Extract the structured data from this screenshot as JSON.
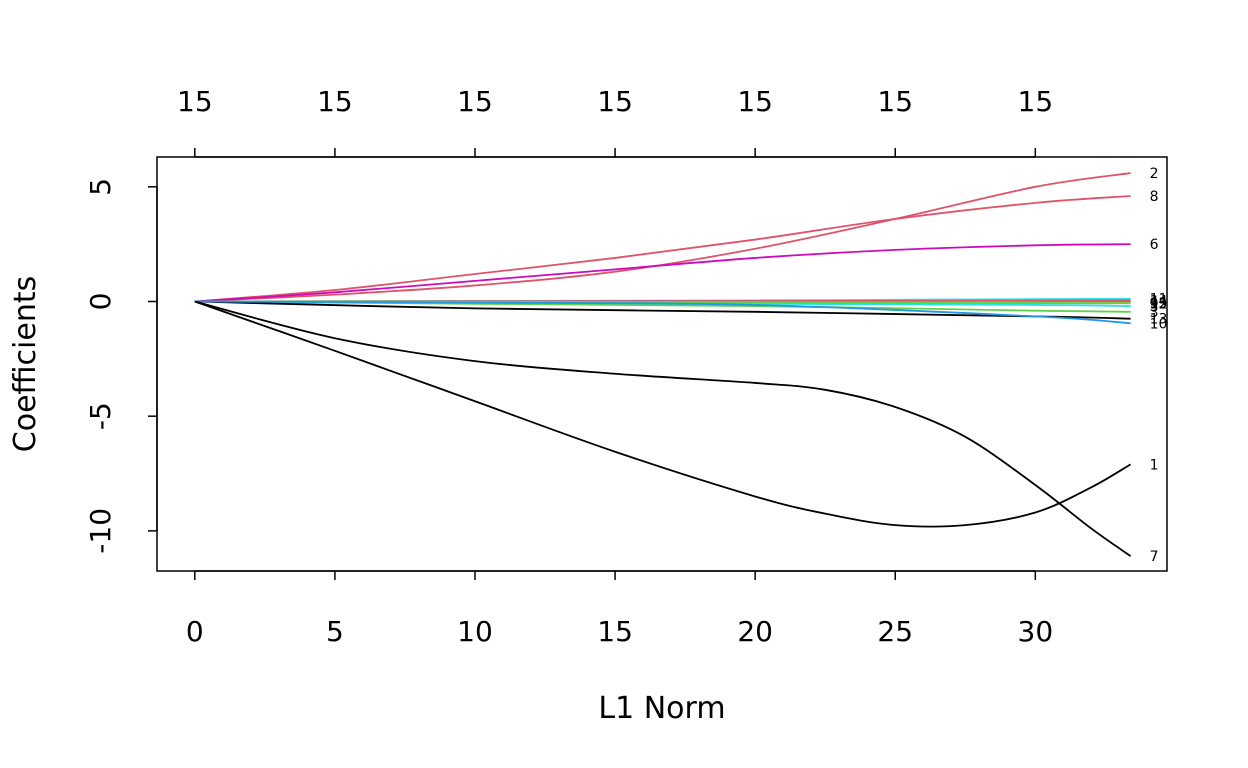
{
  "chart_data": {
    "type": "line",
    "xlabel": "L1 Norm",
    "ylabel": "Coefficients",
    "xlim": [
      -1.35,
      34.7
    ],
    "ylim": [
      -11.75,
      6.3
    ],
    "x_ticks": [
      0,
      5,
      10,
      15,
      20,
      25,
      30
    ],
    "x_tick_labels": [
      "0",
      "5",
      "10",
      "15",
      "20",
      "25",
      "30"
    ],
    "y_ticks": [
      5,
      0,
      -5,
      -10
    ],
    "y_tick_labels": [
      "5",
      "0",
      "-5",
      "-10"
    ],
    "top_axis": {
      "ticks": [
        0,
        5,
        10,
        15,
        20,
        25,
        30
      ],
      "labels": [
        "15",
        "15",
        "15",
        "15",
        "15",
        "15",
        "15"
      ]
    },
    "grid": false,
    "series": [
      {
        "name": "2",
        "color": "#DF536B",
        "x": [
          0,
          5,
          10,
          15,
          20,
          25,
          30,
          33.4
        ],
        "y": [
          0,
          0.3,
          0.7,
          1.3,
          2.3,
          3.6,
          5.0,
          5.6
        ]
      },
      {
        "name": "8",
        "color": "#DF536B",
        "x": [
          0,
          5,
          10,
          15,
          20,
          25,
          30,
          33.4
        ],
        "y": [
          0,
          0.5,
          1.2,
          1.9,
          2.7,
          3.6,
          4.3,
          4.6
        ]
      },
      {
        "name": "6",
        "color": "#CD0BBC",
        "x": [
          0,
          5,
          10,
          15,
          20,
          25,
          30,
          33.4
        ],
        "y": [
          0,
          0.4,
          0.9,
          1.4,
          1.9,
          2.25,
          2.45,
          2.5
        ]
      },
      {
        "name": "11",
        "color": "#28E2E5",
        "x": [
          0,
          10,
          20,
          30,
          33.4
        ],
        "y": [
          0,
          0.02,
          0.05,
          0.1,
          0.12
        ]
      },
      {
        "name": "3",
        "color": "#61D04F",
        "x": [
          0,
          10,
          20,
          30,
          33.4
        ],
        "y": [
          0,
          -0.1,
          -0.2,
          -0.4,
          -0.45
        ]
      },
      {
        "name": "5",
        "color": "#28E2E5",
        "x": [
          0,
          10,
          20,
          30,
          33.4
        ],
        "y": [
          0,
          -0.05,
          -0.1,
          -0.15,
          -0.2
        ]
      },
      {
        "name": "12",
        "color": "#9E9E9E",
        "x": [
          0,
          10,
          20,
          30,
          33.4
        ],
        "y": [
          0,
          -0.02,
          -0.05,
          -0.07,
          -0.08
        ]
      },
      {
        "name": "4",
        "color": "#2297E6",
        "x": [
          0,
          10,
          20,
          30,
          33.4
        ],
        "y": [
          0,
          0.02,
          0.02,
          0.02,
          0.02
        ]
      },
      {
        "name": "9",
        "color": "#F5C710",
        "x": [
          0,
          10,
          20,
          30,
          33.4
        ],
        "y": [
          0,
          0.01,
          0.0,
          -0.05,
          -0.06
        ]
      },
      {
        "name": "14",
        "color": "#DF536B",
        "x": [
          0,
          10,
          20,
          30,
          33.4
        ],
        "y": [
          0,
          0.01,
          0.02,
          0.04,
          0.05
        ]
      },
      {
        "name": "15",
        "color": "#61D04F",
        "x": [
          0,
          10,
          20,
          30,
          33.4
        ],
        "y": [
          0,
          -0.01,
          -0.03,
          -0.06,
          -0.07
        ]
      },
      {
        "name": "13",
        "color": "#000000",
        "x": [
          0,
          10,
          20,
          30,
          33.4
        ],
        "y": [
          0,
          -0.3,
          -0.45,
          -0.65,
          -0.75
        ]
      },
      {
        "name": "10",
        "color": "#2297E6",
        "x": [
          0,
          10,
          20,
          30,
          33.4
        ],
        "y": [
          0,
          -0.05,
          -0.15,
          -0.65,
          -0.95
        ]
      },
      {
        "name": "1",
        "color": "#000000",
        "x": [
          0,
          5,
          10,
          15,
          20,
          22.5,
          25,
          27.5,
          30,
          32,
          33.4
        ],
        "y": [
          0,
          -2.15,
          -4.35,
          -6.55,
          -8.5,
          -9.25,
          -9.75,
          -9.75,
          -9.2,
          -8.1,
          -7.1
        ]
      },
      {
        "name": "7",
        "color": "#000000",
        "x": [
          0,
          5,
          10,
          15,
          20,
          22.5,
          25,
          27.5,
          30,
          32,
          33.4
        ],
        "y": [
          0,
          -1.6,
          -2.6,
          -3.15,
          -3.55,
          -3.85,
          -4.6,
          -5.9,
          -8.0,
          -9.9,
          -11.1
        ]
      }
    ]
  }
}
